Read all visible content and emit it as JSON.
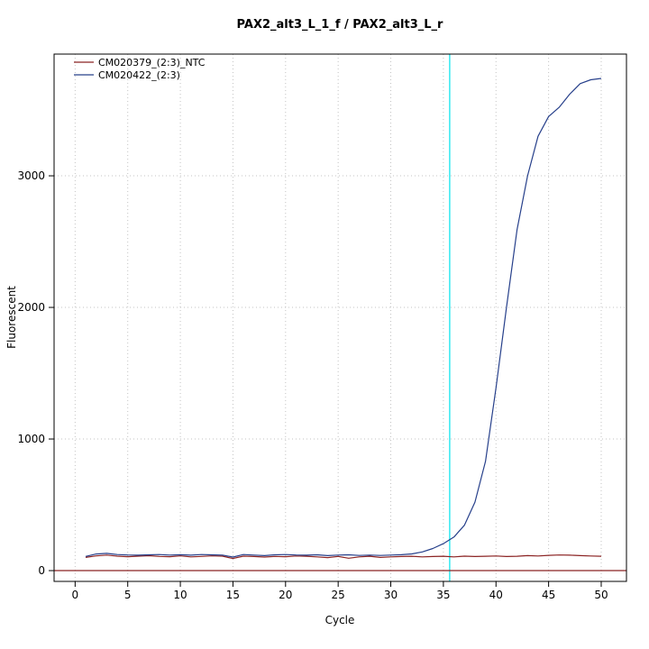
{
  "chart_data": {
    "type": "line",
    "title": "PAX2_alt3_L_1_f / PAX2_alt3_L_r",
    "xlabel": "Cycle",
    "ylabel": "Fluorescent",
    "xlim": [
      -2,
      52.4
    ],
    "ylim": [
      -82,
      3925
    ],
    "xticks": [
      0,
      5,
      10,
      15,
      20,
      25,
      30,
      35,
      40,
      45,
      50
    ],
    "yticks": [
      0,
      1000,
      2000,
      3000
    ],
    "grid": true,
    "grid_color": "#c3c3c3",
    "box_color": "#000000",
    "legend_position": "top-left",
    "threshold_line": {
      "cycle": 35.6,
      "color": "#00e5ee"
    },
    "baseline": {
      "y": 0,
      "color": "#8b2323"
    },
    "x": [
      1,
      2,
      3,
      4,
      5,
      6,
      7,
      8,
      9,
      10,
      11,
      12,
      13,
      14,
      15,
      16,
      17,
      18,
      19,
      20,
      21,
      22,
      23,
      24,
      25,
      26,
      27,
      28,
      29,
      30,
      31,
      32,
      33,
      34,
      35,
      36,
      37,
      38,
      39,
      40,
      41,
      42,
      43,
      44,
      45,
      46,
      47,
      48,
      49,
      50
    ],
    "series": [
      {
        "name": "CM020379_(2:3)_NTC",
        "color": "#8b2323",
        "values": [
          100,
          112,
          118,
          110,
          106,
          110,
          113,
          108,
          106,
          112,
          104,
          108,
          112,
          110,
          92,
          110,
          107,
          103,
          108,
          106,
          111,
          109,
          104,
          99,
          108,
          94,
          104,
          109,
          100,
          104,
          107,
          109,
          104,
          107,
          109,
          104,
          110,
          107,
          109,
          111,
          107,
          109,
          114,
          111,
          116,
          119,
          117,
          114,
          111,
          109
        ]
      },
      {
        "name": "CM020422_(2:3)",
        "color": "#27408b",
        "values": [
          108,
          126,
          131,
          122,
          119,
          117,
          120,
          122,
          118,
          121,
          117,
          122,
          120,
          118,
          103,
          122,
          118,
          114,
          120,
          122,
          119,
          117,
          120,
          114,
          118,
          120,
          115,
          118,
          115,
          118,
          121,
          127,
          142,
          168,
          205,
          255,
          345,
          520,
          830,
          1390,
          2000,
          2590,
          3000,
          3300,
          3450,
          3520,
          3620,
          3700,
          3730,
          3740
        ]
      }
    ]
  }
}
